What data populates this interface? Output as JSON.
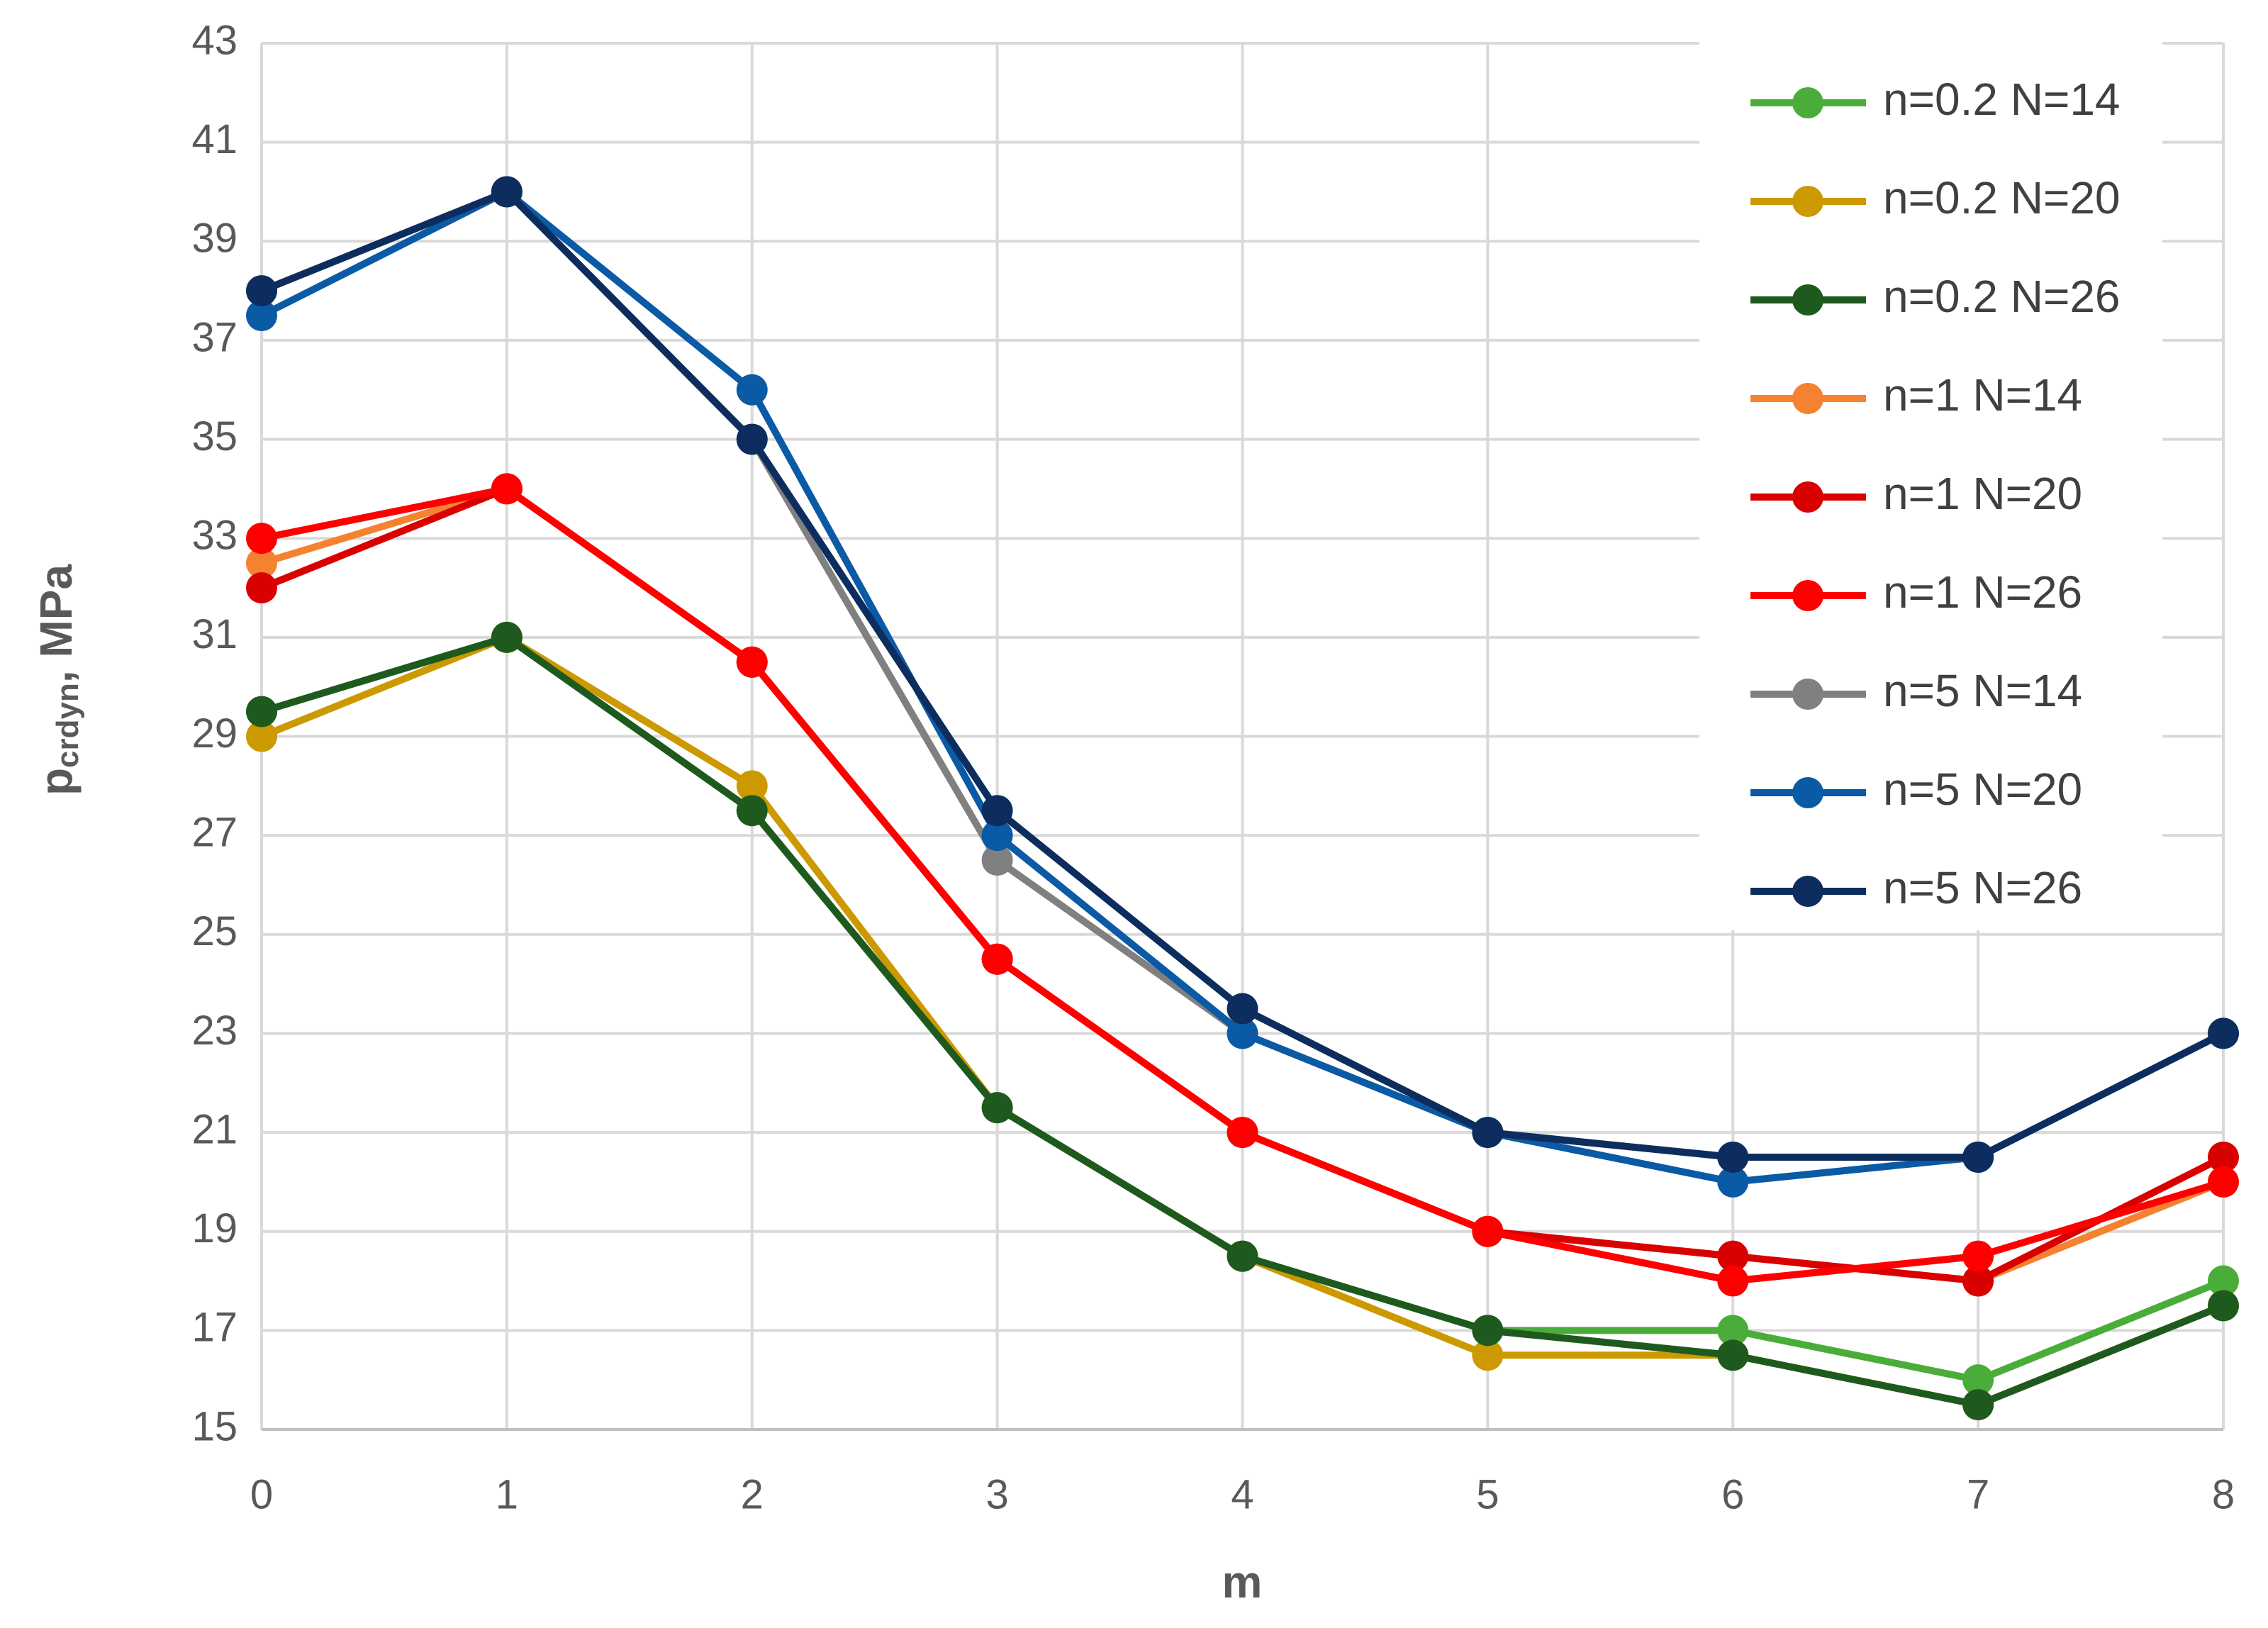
{
  "chart_data": {
    "type": "line",
    "xlabel": "m",
    "ylabel": [
      "p",
      "crdyn",
      ", MPa"
    ],
    "x": [
      0,
      1,
      2,
      3,
      4,
      5,
      6,
      7,
      8
    ],
    "xlim": [
      0,
      8
    ],
    "xticks": [
      0,
      1,
      2,
      3,
      4,
      5,
      6,
      7,
      8
    ],
    "ylim": [
      15,
      43
    ],
    "yticks": [
      15,
      17,
      19,
      21,
      23,
      25,
      27,
      29,
      31,
      33,
      35,
      37,
      39,
      41,
      43
    ],
    "grid": true,
    "legend": "upper right",
    "series": [
      {
        "name": "n=0.2 N=14",
        "color": "#4aad3a",
        "values": [
          29.5,
          31,
          27.5,
          21.5,
          18.5,
          17,
          17,
          16,
          18
        ]
      },
      {
        "name": "n=0.2 N=20",
        "color": "#cc9900",
        "values": [
          29,
          31,
          28,
          21.5,
          18.5,
          16.5,
          16.5,
          15.5,
          17.5
        ]
      },
      {
        "name": "n=0.2 N=26",
        "color": "#1e5a1e",
        "values": [
          29.5,
          31,
          27.5,
          21.5,
          18.5,
          17,
          16.5,
          15.5,
          17.5
        ]
      },
      {
        "name": "n=1 N=14",
        "color": "#f58231",
        "values": [
          32.5,
          34,
          30.5,
          24.5,
          21,
          19,
          18.5,
          18,
          20
        ]
      },
      {
        "name": "n=1 N=20",
        "color": "#d90000",
        "values": [
          32,
          34,
          30.5,
          24.5,
          21,
          19,
          18.5,
          18,
          20.5
        ]
      },
      {
        "name": "n=1 N=26",
        "color": "#ff0000",
        "values": [
          33,
          34,
          30.5,
          24.5,
          21,
          19,
          18,
          18.5,
          20
        ]
      },
      {
        "name": "n=5 N=14",
        "color": "#808080",
        "values": [
          38,
          40,
          35,
          26.5,
          23,
          21,
          20.5,
          20.5,
          23
        ]
      },
      {
        "name": "n=5 N=20",
        "color": "#0a5aa5",
        "values": [
          37.5,
          40,
          36,
          27,
          23,
          21,
          20,
          20.5,
          23
        ]
      },
      {
        "name": "n=5 N=26",
        "color": "#0d2d5e",
        "values": [
          38,
          40,
          35,
          27.5,
          23.5,
          21,
          20.5,
          20.5,
          23
        ]
      }
    ]
  }
}
